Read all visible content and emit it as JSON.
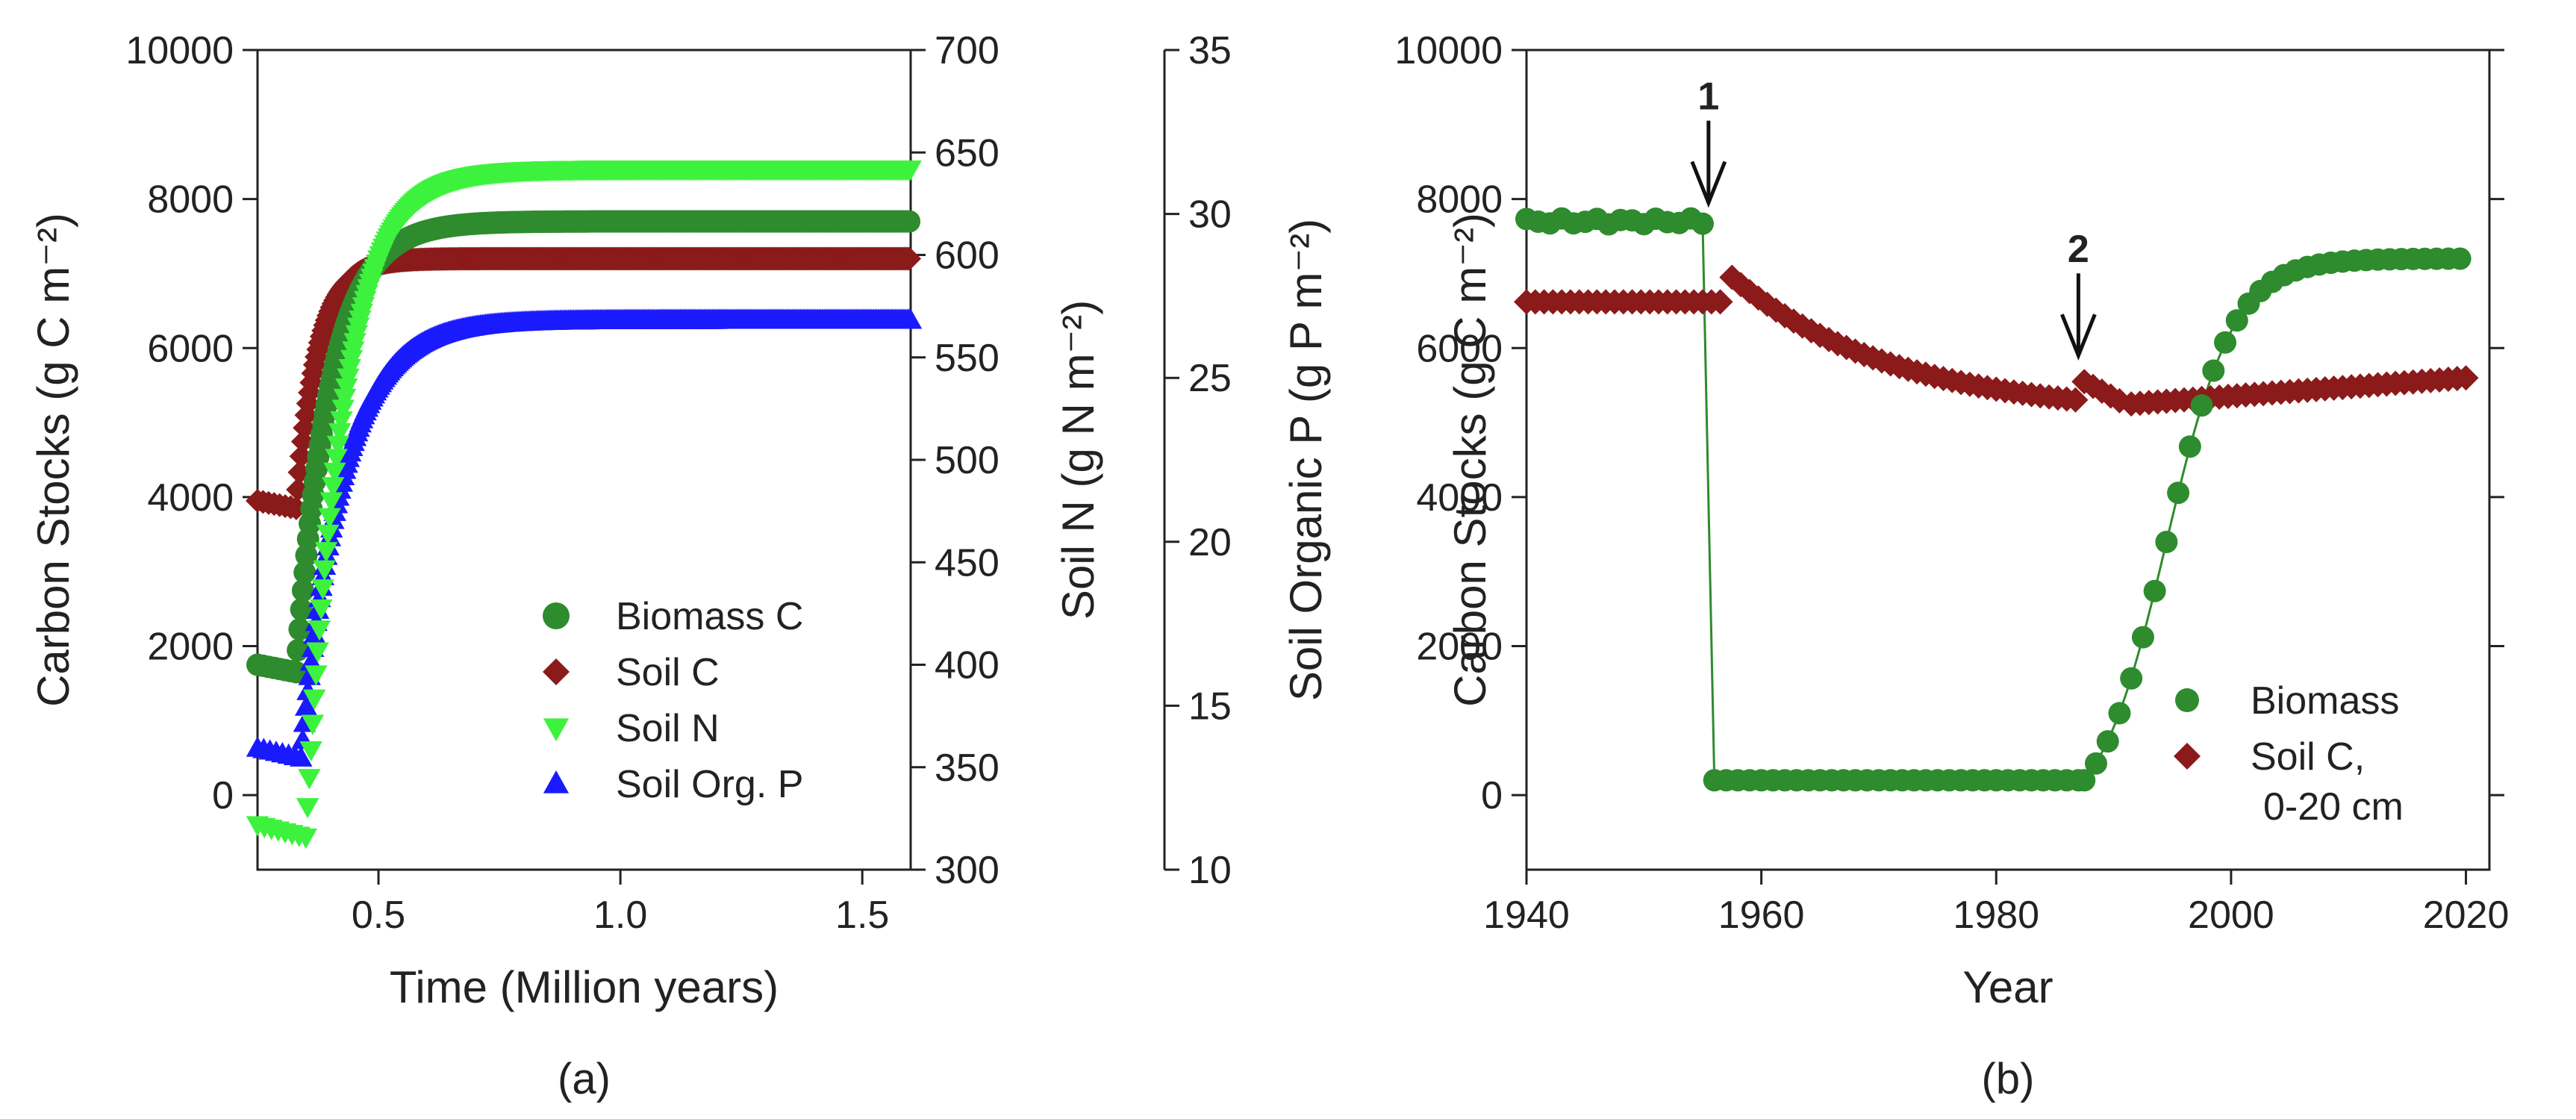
{
  "colors": {
    "biomass": "#2e8b2e",
    "soil_c": "#8b1a1a",
    "soil_n": "#3df23d",
    "soil_p": "#1a1aff",
    "axis": "#222222"
  },
  "chart_data": [
    {
      "id": "a",
      "type": "scatter",
      "panel_label": "(a)",
      "xlabel": "Time (Million years)",
      "xlim": [
        0.25,
        1.6
      ],
      "x_ticks": [
        0.5,
        1.0,
        1.5
      ],
      "x_tick_labels": [
        "0.5",
        "1.0",
        "1.5"
      ],
      "axes": [
        {
          "id": "y1",
          "label": "Carbon Stocks (g C m⁻²)",
          "range": [
            -1000,
            10000
          ],
          "ticks": [
            0,
            2000,
            4000,
            6000,
            8000,
            10000
          ],
          "tick_labels": [
            "0",
            "2000",
            "4000",
            "6000",
            "8000",
            "10000"
          ]
        },
        {
          "id": "y2",
          "label": "Soil N (g N m⁻²)",
          "range": [
            300,
            700
          ],
          "ticks": [
            300,
            350,
            400,
            450,
            500,
            550,
            600,
            650,
            700
          ],
          "tick_labels": [
            "300",
            "350",
            "400",
            "450",
            "500",
            "550",
            "600",
            "650",
            "700"
          ]
        },
        {
          "id": "y3",
          "label": "Soil Organic P (g P m⁻²)",
          "range": [
            10,
            35
          ],
          "ticks": [
            10,
            15,
            20,
            25,
            30,
            35
          ],
          "tick_labels": [
            "10",
            "15",
            "20",
            "25",
            "30",
            "35"
          ]
        }
      ],
      "series": [
        {
          "name": "Biomass C",
          "key": "biomass",
          "marker": "circle",
          "axis": "y1",
          "x0": 0.25,
          "xb": 0.33,
          "xe": 1.6,
          "v0": 1750,
          "vb": 1650,
          "vf": 7700,
          "tau": 0.07
        },
        {
          "name": "Soil C",
          "key": "soil_c",
          "marker": "diamond",
          "axis": "y1",
          "x0": 0.25,
          "xb": 0.33,
          "xe": 1.6,
          "v0": 3950,
          "vb": 3850,
          "vf": 7200,
          "tau": 0.045
        },
        {
          "name": "Soil N",
          "key": "soil_n",
          "marker": "tri-down",
          "axis": "y2",
          "x0": 0.25,
          "xb": 0.35,
          "xe": 1.6,
          "v0": 322,
          "vb": 316,
          "vf": 642,
          "tau": 0.075
        },
        {
          "name": "Soil Org. P",
          "key": "soil_p",
          "marker": "tri-up",
          "axis": "y3",
          "x0": 0.25,
          "xb": 0.34,
          "xe": 1.6,
          "v0": 13.7,
          "vb": 13.4,
          "vf": 26.75,
          "tau": 0.085
        }
      ],
      "legend": {
        "location": "center-right",
        "entries": [
          "Biomass C",
          "Soil C",
          "Soil N",
          "Soil Org. P"
        ]
      }
    },
    {
      "id": "b",
      "type": "scatter",
      "panel_label": "(b)",
      "xlabel": "Year",
      "ylabel": "Carbon Stocks (g C m⁻²)",
      "xlim": [
        1940,
        2022
      ],
      "ylim": [
        -1000,
        10000
      ],
      "x_ticks": [
        1940,
        1960,
        1980,
        2000,
        2020
      ],
      "x_tick_labels": [
        "1940",
        "1960",
        "1980",
        "2000",
        "2020"
      ],
      "y_ticks": [
        0,
        2000,
        4000,
        6000,
        8000,
        10000
      ],
      "y_tick_labels": [
        "0",
        "2000",
        "4000",
        "6000",
        "8000",
        "10000"
      ],
      "biomass": {
        "name": "Biomass",
        "key": "biomass",
        "segments": [
          {
            "x0": 1940,
            "x1": 1955.5,
            "step": 1,
            "v": 7700
          },
          {
            "x0": 1956,
            "x1": 1987,
            "step": 1,
            "v": 200
          },
          {
            "x0": 1987.5,
            "x1": 2020,
            "step": 1,
            "start": 200,
            "end": 7200,
            "midpoint": 1994.5,
            "rate": 0.35
          }
        ]
      },
      "soil_c": {
        "name": "Soil C,",
        "name_line2": "0-20 cm",
        "key": "soil_c",
        "segments": [
          {
            "x0": 1940,
            "x1": 1957,
            "step": 0.75,
            "v": 6620
          },
          {
            "x0": 1957.5,
            "x1": 1987,
            "step": 0.75,
            "start": 6950,
            "end": 5300,
            "tau": 14
          },
          {
            "x0": 1987.5,
            "x1": 1991,
            "step": 0.75,
            "start": 5550,
            "end": 5250
          },
          {
            "x0": 1991.5,
            "x1": 2020,
            "step": 0.75,
            "start": 5250,
            "end": 5600
          }
        ]
      },
      "annotations": [
        {
          "label": "1",
          "x": 1955.5,
          "y_tip": 7750
        },
        {
          "label": "2",
          "x": 1987,
          "y_tip": 5700
        }
      ],
      "legend": {
        "location": "lower-right",
        "entries": [
          "Biomass",
          "Soil C, 0-20 cm"
        ]
      }
    }
  ]
}
